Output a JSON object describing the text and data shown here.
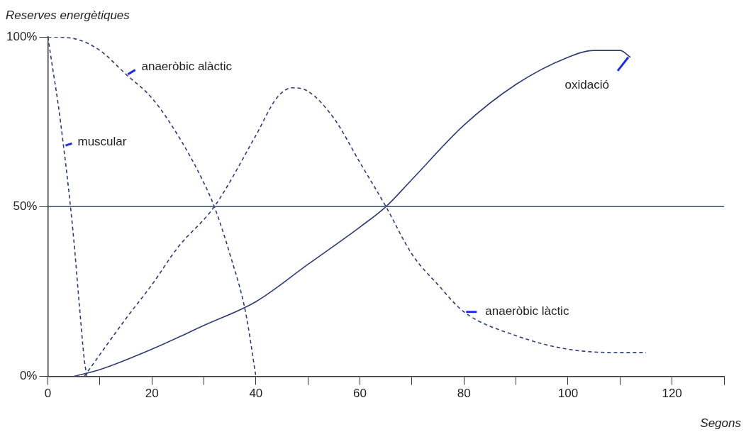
{
  "chart_data": {
    "type": "line",
    "ylabel": "Reserves energètiques",
    "xlabel": "Segons",
    "xlim": [
      0,
      130
    ],
    "xticks": [
      0,
      {
        "value": 10,
        "label": null
      },
      20,
      {
        "value": 30,
        "label": null
      },
      40,
      {
        "value": 50,
        "label": null
      },
      60,
      {
        "value": 70,
        "label": null
      },
      80,
      {
        "value": 90,
        "label": null
      },
      100,
      {
        "value": 110,
        "label": null
      },
      120,
      {
        "value": 130,
        "label": null
      }
    ],
    "ylim": [
      0,
      100
    ],
    "yticks": [
      {
        "value": 0,
        "label": "0%"
      },
      {
        "value": 50,
        "label": "50%"
      },
      {
        "value": 100,
        "label": "100%"
      }
    ],
    "grid": false,
    "legend": false,
    "marker": "none",
    "ref_lines": [
      {
        "axis": "y",
        "value": 50,
        "label": null,
        "color": "#3b4a86",
        "line_style": "solid"
      }
    ],
    "series": [
      {
        "name": "muscular",
        "color": "#2f3c70",
        "line_style": "dashed",
        "x": [
          0,
          1,
          2,
          3,
          4,
          5,
          6,
          7,
          7.5
        ],
        "values": [
          100,
          90,
          80,
          68,
          55,
          40,
          22,
          5,
          0
        ]
      },
      {
        "name": "anaeròbic alàctic",
        "color": "#2f3c70",
        "line_style": "dashed",
        "x": [
          0,
          5,
          10,
          15,
          20,
          25,
          30,
          32,
          35,
          38,
          40
        ],
        "values": [
          100,
          99.5,
          96,
          89,
          82,
          71,
          57,
          50,
          36,
          19,
          0
        ]
      },
      {
        "name": "anaeròbic làctic",
        "color": "#2f3c70",
        "line_style": "dashed",
        "x": [
          7,
          15,
          20,
          25,
          32,
          40,
          44,
          47,
          50,
          55,
          60,
          65,
          70,
          75,
          80,
          90,
          100,
          110,
          115
        ],
        "values": [
          0,
          17,
          27,
          38,
          50,
          71,
          82,
          85,
          84,
          76,
          63,
          50,
          36,
          27,
          19,
          12,
          8,
          7,
          7
        ]
      },
      {
        "name": "oxidació",
        "color": "#2f3c70",
        "line_style": "solid",
        "x": [
          5,
          10,
          20,
          30,
          40,
          50,
          60,
          65,
          70,
          80,
          90,
          100,
          105,
          110,
          112
        ],
        "values": [
          0,
          2,
          8,
          15,
          22,
          33,
          44,
          50,
          58,
          74,
          86,
          94,
          96,
          96,
          94
        ]
      }
    ]
  }
}
